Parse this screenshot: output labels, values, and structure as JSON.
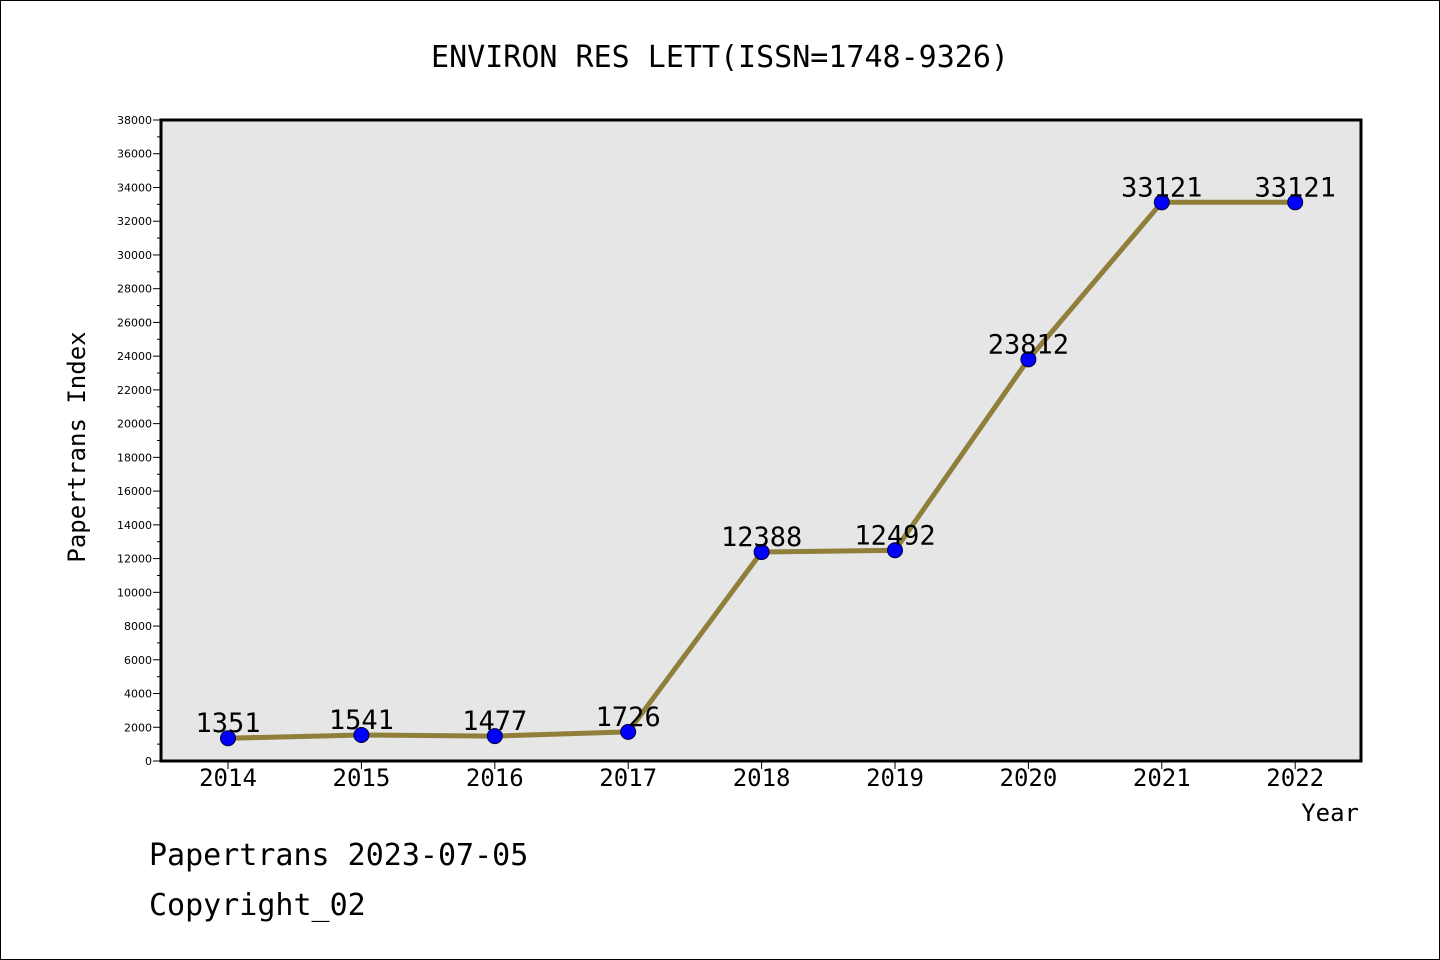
{
  "chart_data": {
    "type": "line",
    "title": "ENVIRON RES LETT(ISSN=1748-9326)",
    "xlabel": "Year",
    "ylabel": "Papertrans Index",
    "categories": [
      "2014",
      "2015",
      "2016",
      "2017",
      "2018",
      "2019",
      "2020",
      "2021",
      "2022"
    ],
    "series": [
      {
        "values": [
          1351,
          1541,
          1477,
          1726,
          12388,
          12492,
          23812,
          33121,
          33121
        ]
      }
    ],
    "data_labels": [
      "1351",
      "1541",
      "1477",
      "1726",
      "12388",
      "12492",
      "23812",
      "33121",
      "33121"
    ],
    "ylim": [
      0,
      38000
    ],
    "y_ticks": [
      "0",
      "2000",
      "4000",
      "6000",
      "8000",
      "10000",
      "12000",
      "14000",
      "16000",
      "18000",
      "20000",
      "22000",
      "24000",
      "26000",
      "28000",
      "30000",
      "32000",
      "34000",
      "36000",
      "38000"
    ],
    "grid": false,
    "line_color": "#8f7f3a",
    "marker_color": "#0000ff",
    "plot_background": "#e6e6e6"
  },
  "footer": {
    "line1": "Papertrans 2023-07-05",
    "line2": "Copyright_02"
  }
}
